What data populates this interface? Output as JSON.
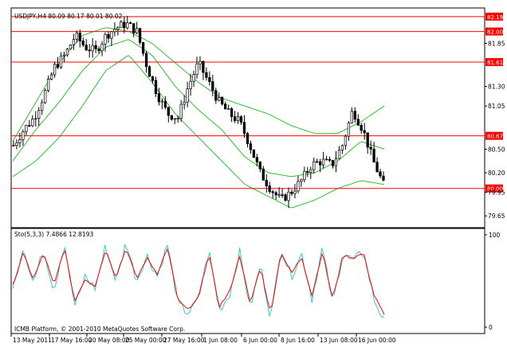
{
  "header": {
    "price_label": "USDJPY,H4  80.09 80.17 80.01 80.02",
    "osc_label": "Sto(5,3,3) 7.4866 12.8193",
    "copyright": "ICMB Platform, © 2001-2010 MetaQuotes Software Corp."
  },
  "colors": {
    "background": "#ffffff",
    "candle": "#000000",
    "bollinger": "#33bb33",
    "level_line": "#ff0000",
    "stoch_main": "#33cccc",
    "stoch_signal": "#ff0000"
  },
  "chart_data": [
    {
      "type": "candlestick",
      "title": "USDJPY,H4",
      "ylim": [
        79.5,
        82.3
      ],
      "y_ticks": [
        "82.19",
        "82.00",
        "81.85",
        "81.61",
        "81.30",
        "81.05",
        "80.67",
        "80.50",
        "80.20",
        "80.00",
        "79.95",
        "79.65"
      ],
      "x_ticks": [
        "13 May 2011",
        "17 May 16:00",
        "20 May 08:00",
        "25 May 00:00",
        "27 May 16:00",
        "1 Jun 08:00",
        "6 Jun 00:00",
        "8 Jun 16:00",
        "13 Jun 08:00",
        "16 Jun 00:00"
      ],
      "horizontal_levels": [
        "82.19",
        "82.00",
        "81.61",
        "80.67",
        "80.00"
      ],
      "overlays": [
        "Bollinger Bands"
      ],
      "close_path": [
        80.55,
        80.75,
        80.9,
        81.2,
        81.55,
        81.7,
        81.95,
        81.8,
        81.75,
        81.95,
        82.05,
        82.1,
        82.0,
        81.55,
        81.2,
        80.95,
        80.9,
        81.3,
        81.6,
        81.35,
        81.1,
        80.95,
        80.85,
        80.55,
        80.2,
        80.0,
        79.85,
        79.95,
        80.1,
        80.3,
        80.35,
        80.3,
        80.55,
        81.0,
        80.75,
        80.35,
        80.05
      ],
      "bollinger": {
        "upper": [
          80.6,
          81.1,
          81.6,
          81.95,
          82.05,
          82.0,
          81.85,
          81.6,
          81.35,
          81.15,
          81.05,
          80.95,
          80.8,
          80.7,
          80.7,
          80.85,
          81.05
        ],
        "middle": [
          80.35,
          80.75,
          81.1,
          81.5,
          81.8,
          81.9,
          81.7,
          81.3,
          81.0,
          80.75,
          80.4,
          80.2,
          80.15,
          80.2,
          80.35,
          80.6,
          80.5
        ],
        "lower": [
          80.15,
          80.35,
          80.65,
          81.05,
          81.5,
          81.7,
          81.35,
          80.95,
          80.65,
          80.35,
          80.05,
          79.9,
          79.75,
          79.85,
          80.0,
          80.1,
          80.05
        ]
      }
    },
    {
      "type": "line",
      "title": "Sto(5,3,3)",
      "ylim": [
        0,
        100
      ],
      "y_ticks": [
        "100",
        "0"
      ],
      "series": [
        {
          "name": "main",
          "values": [
            40,
            88,
            48,
            84,
            40,
            92,
            22,
            55,
            42,
            88,
            50,
            92,
            50,
            78,
            55,
            90,
            25,
            15,
            30,
            84,
            18,
            35,
            82,
            20,
            68,
            10,
            85,
            55,
            80,
            30,
            86,
            25,
            80,
            72,
            82,
            30,
            7
          ]
        },
        {
          "name": "signal",
          "values": [
            45,
            80,
            52,
            80,
            45,
            86,
            28,
            52,
            45,
            84,
            54,
            86,
            52,
            75,
            58,
            86,
            30,
            18,
            32,
            80,
            22,
            38,
            78,
            25,
            65,
            14,
            82,
            58,
            76,
            34,
            82,
            30,
            78,
            75,
            80,
            35,
            13
          ]
        }
      ]
    }
  ]
}
